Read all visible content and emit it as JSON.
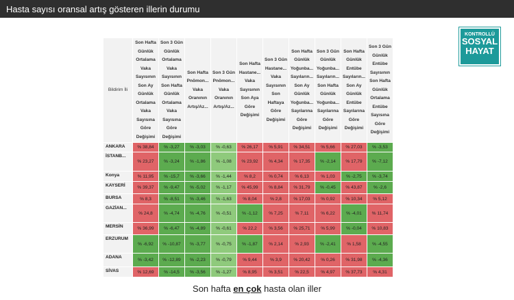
{
  "header": {
    "title": "Hasta sayısı oransal artış gösteren illerin durumu"
  },
  "logo": {
    "lines": [
      "KONTROLLÜ",
      "SOSYAL",
      "HAYAT"
    ]
  },
  "table": {
    "columns": [
      "Bildirim İli",
      "Son Hafta Günlük Ortalama Vaka Sayısının Son Ay Günlük Ortalama Vaka Sayısına Göre Değişimi",
      "Son 3 Gün Günlük Ortalama Vaka Sayısının Son Hafta Günlük Ortalama Vaka Sayısına Göre Değişimi",
      "Son Hafta Pnömon... Vaka Oranının Artış/Az...",
      "Son 3 Gün Pnömon... Vaka Oranının Artış/Az...",
      "Son Hafta Hastane... Vaka Sayısının Son Aya Göre Değişimi",
      "Son 3 Gün Hastane... Vaka Sayısının Son Haftaya Göre Değişimi",
      "Son Hafta Günlük Yoğunba... Sayıların... Son Ay Günlük Yoğunba... Sayılarına Göre Değişimi",
      "Son 3 Gün Günlük Yoğunba... Sayıların... Son Hafta Günlük Yoğunba... Sayılarına Göre Değişimi",
      "Son Hafta Günlük Entübe Sayıların... Son Ay Günlük Entübe Sayılarına Göre Değişimi",
      "Son 3 Gün Günlük Entübe Sayısının Son Hafta Günlük Ortalama Entübe Sayısına Göre Değişimi"
    ],
    "colors": {
      "increase": "#e06467",
      "decrease": "#5cab4f",
      "decrease_light": "#8fca7c"
    },
    "light_column": 3,
    "rows": [
      {
        "name": "ANKARA",
        "values": [
          "% 38,84",
          "% -3,27",
          "% -3,03",
          "% -0,63",
          "% 26,17",
          "% 5,91",
          "% 34,51",
          "% 5,66",
          "% 27,03",
          "% -3,53"
        ]
      },
      {
        "name": "İSTANB...",
        "values": [
          "% 23,27",
          "% -3,24",
          "% -1,86",
          "% -1,08",
          "% 23,92",
          "% 4,34",
          "% 17,35",
          "% -2,14",
          "% 17,79",
          "% -7,12"
        ]
      },
      {
        "name": "Konya",
        "values": [
          "% 11,95",
          "% -15,7",
          "% -3,66",
          "% -1,44",
          "% 8,2",
          "% 0,74",
          "% 6,13",
          "% 1,03",
          "% -2,75",
          "% -3,74"
        ]
      },
      {
        "name": "KAYSERİ",
        "values": [
          "% 39,37",
          "% -9,47",
          "% -5,02",
          "% -1,17",
          "% 45,99",
          "% 8,84",
          "% 31,79",
          "% -0,45",
          "% 43,87",
          "% -2,6"
        ]
      },
      {
        "name": "BURSA",
        "values": [
          "% 8,3",
          "% -8,51",
          "% -3,46",
          "% -1,63",
          "% 8,04",
          "% 2,8",
          "% 17,03",
          "% 0,92",
          "% 10,34",
          "% 5,12"
        ]
      },
      {
        "name": "GAZİAN...",
        "values": [
          "% 24,8",
          "% -4,74",
          "% -4,76",
          "% -0,51",
          "% -1,12",
          "% 7,25",
          "% 7,11",
          "% 6,22",
          "% -4,01",
          "% 11,74"
        ]
      },
      {
        "name": "MERSİN",
        "values": [
          "% 36,99",
          "% -6,47",
          "% -4,89",
          "% -0,61",
          "% 22,2",
          "% 3,56",
          "% 25,71",
          "% 5,99",
          "% -0,04",
          "% 10,83"
        ]
      },
      {
        "name": "ERZURUM",
        "values": [
          "% -6,92",
          "% -10,87",
          "% -3,77",
          "% -0,75",
          "% -1,87",
          "% 2,14",
          "% 2,93",
          "% -2,41",
          "% 1,58",
          "% -4,55"
        ]
      },
      {
        "name": "ADANA",
        "values": [
          "% -3,42",
          "% -12,89",
          "% -2,23",
          "% -0,79",
          "% 9,44",
          "% 3,9",
          "% 20,42",
          "% 0,26",
          "% 31,98",
          "% -4,36"
        ]
      },
      {
        "name": "SİVAS",
        "values": [
          "% 12,69",
          "% -14,5",
          "% -3,56",
          "% -1,27",
          "% 8,95",
          "% 3,51",
          "% 22,5",
          "% 4,97",
          "% 37,73",
          "% 4,31"
        ]
      }
    ]
  },
  "caption": {
    "before": "Son hafta ",
    "emphasis": "en çok",
    "after": " hasta olan iller"
  }
}
